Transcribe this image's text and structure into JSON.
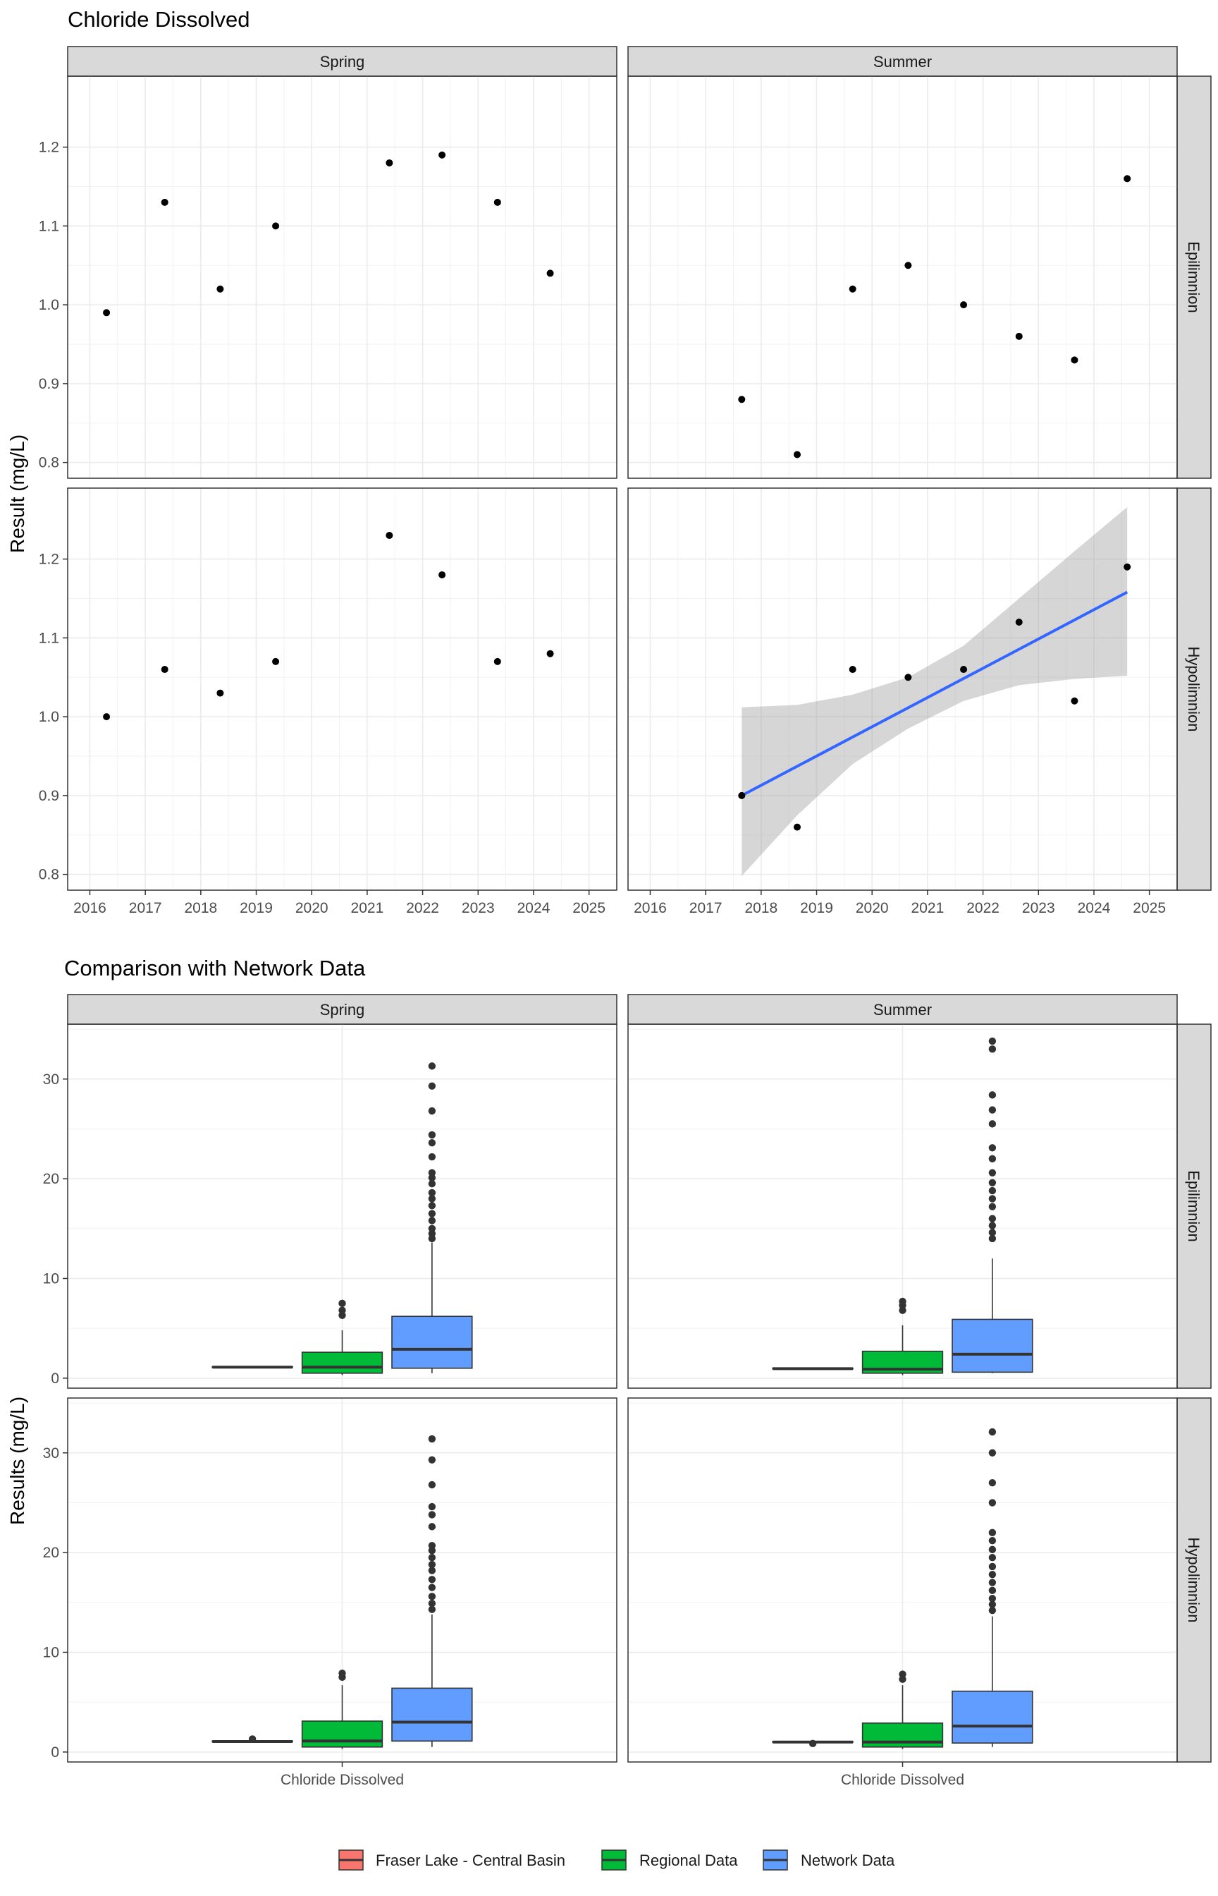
{
  "chart_data": [
    {
      "type": "scatter",
      "title": "Chloride Dissolved",
      "ylabel": "Result (mg/L)",
      "ylim": [
        0.78,
        1.29
      ],
      "xlim": [
        2015.6,
        2025.5
      ],
      "x_ticks": [
        "2016",
        "2017",
        "2018",
        "2019",
        "2020",
        "2021",
        "2022",
        "2023",
        "2024",
        "2025"
      ],
      "y_ticks": [
        "0.8",
        "0.9",
        "1.0",
        "1.1",
        "1.2"
      ],
      "columns": [
        "Spring",
        "Summer"
      ],
      "rows": [
        "Epilimnion",
        "Hypolimnion"
      ],
      "grid": true,
      "panels": [
        {
          "column": "Spring",
          "row": "Epilimnion",
          "points": [
            [
              2016.3,
              0.99
            ],
            [
              2017.35,
              1.13
            ],
            [
              2018.35,
              1.02
            ],
            [
              2019.35,
              1.1
            ],
            [
              2021.4,
              1.18
            ],
            [
              2022.35,
              1.19
            ],
            [
              2023.35,
              1.13
            ],
            [
              2024.3,
              1.04
            ]
          ]
        },
        {
          "column": "Summer",
          "row": "Epilimnion",
          "points": [
            [
              2017.65,
              0.88
            ],
            [
              2018.65,
              0.81
            ],
            [
              2019.65,
              1.02
            ],
            [
              2020.65,
              1.05
            ],
            [
              2021.65,
              1.0
            ],
            [
              2022.65,
              0.96
            ],
            [
              2023.65,
              0.93
            ],
            [
              2024.6,
              1.16
            ]
          ]
        },
        {
          "column": "Spring",
          "row": "Hypolimnion",
          "points": [
            [
              2016.3,
              1.0
            ],
            [
              2017.35,
              1.06
            ],
            [
              2018.35,
              1.03
            ],
            [
              2019.35,
              1.07
            ],
            [
              2021.4,
              1.23
            ],
            [
              2022.35,
              1.18
            ],
            [
              2023.35,
              1.07
            ],
            [
              2024.3,
              1.08
            ]
          ]
        },
        {
          "column": "Summer",
          "row": "Hypolimnion",
          "points": [
            [
              2017.65,
              0.9
            ],
            [
              2018.65,
              0.86
            ],
            [
              2019.65,
              1.06
            ],
            [
              2020.65,
              1.05
            ],
            [
              2021.65,
              1.06
            ],
            [
              2022.65,
              1.12
            ],
            [
              2023.65,
              1.02
            ],
            [
              2024.6,
              1.19
            ]
          ],
          "trend": {
            "color": "#3366ff",
            "x": [
              2017.65,
              2024.6
            ],
            "y": [
              0.9,
              1.158
            ]
          },
          "ribbon": {
            "x": [
              2017.65,
              2018.65,
              2019.65,
              2020.65,
              2021.65,
              2022.65,
              2023.65,
              2024.6
            ],
            "lower": [
              0.798,
              0.875,
              0.94,
              0.985,
              1.02,
              1.04,
              1.048,
              1.052
            ],
            "upper": [
              1.012,
              1.015,
              1.028,
              1.05,
              1.09,
              1.15,
              1.21,
              1.266
            ]
          }
        }
      ]
    },
    {
      "type": "box",
      "title": "Comparison with Network Data",
      "ylabel": "Results (mg/L)",
      "ylim": [
        -1,
        35.5
      ],
      "y_ticks": [
        "0",
        "10",
        "20",
        "30"
      ],
      "categories": [
        "Chloride Dissolved"
      ],
      "columns": [
        "Spring",
        "Summer"
      ],
      "rows": [
        "Epilimnion",
        "Hypolimnion"
      ],
      "grid": true,
      "legend_position": "bottom",
      "legend": [
        {
          "name": "Fraser Lake - Central Basin",
          "color": "#f8766d"
        },
        {
          "name": "Regional Data",
          "color": "#00ba38"
        },
        {
          "name": "Network Data",
          "color": "#619cff"
        }
      ],
      "panels": [
        {
          "column": "Spring",
          "row": "Epilimnion",
          "groups": [
            {
              "name": "Fraser Lake - Central Basin",
              "min": 1.1,
              "q1": 1.1,
              "median": 1.1,
              "q3": 1.15,
              "max": 1.15,
              "outliers": []
            },
            {
              "name": "Regional Data",
              "min": 0.3,
              "q1": 0.5,
              "median": 1.1,
              "q3": 2.6,
              "max": 4.8,
              "outliers": [
                6.3,
                6.8,
                7.5
              ]
            },
            {
              "name": "Network Data",
              "min": 0.5,
              "q1": 1.0,
              "median": 2.9,
              "q3": 6.2,
              "max": 13.6,
              "outliers": [
                14.0,
                14.5,
                15.0,
                15.8,
                16.5,
                17.3,
                18.0,
                18.6,
                19.5,
                20.1,
                20.6,
                22.2,
                23.6,
                24.4,
                26.8,
                29.3,
                31.3
              ]
            }
          ]
        },
        {
          "column": "Summer",
          "row": "Epilimnion",
          "groups": [
            {
              "name": "Fraser Lake - Central Basin",
              "min": 0.9,
              "q1": 0.95,
              "median": 0.95,
              "q3": 1.0,
              "max": 1.0,
              "outliers": []
            },
            {
              "name": "Regional Data",
              "min": 0.3,
              "q1": 0.5,
              "median": 0.9,
              "q3": 2.7,
              "max": 5.3,
              "outliers": [
                6.8,
                7.3,
                7.7
              ]
            },
            {
              "name": "Network Data",
              "min": 0.5,
              "q1": 0.6,
              "median": 2.4,
              "q3": 5.9,
              "max": 12.0,
              "outliers": [
                14.0,
                14.6,
                15.3,
                16.0,
                17.2,
                18.0,
                18.8,
                19.6,
                20.6,
                22.0,
                23.1,
                25.5,
                26.9,
                28.4,
                33.0,
                33.8
              ]
            }
          ]
        },
        {
          "column": "Spring",
          "row": "Hypolimnion",
          "groups": [
            {
              "name": "Fraser Lake - Central Basin",
              "min": 1.0,
              "q1": 1.05,
              "median": 1.05,
              "q3": 1.1,
              "max": 1.1,
              "outliers": [
                1.3
              ]
            },
            {
              "name": "Regional Data",
              "min": 0.3,
              "q1": 0.5,
              "median": 1.1,
              "q3": 3.1,
              "max": 6.7,
              "outliers": [
                7.5,
                7.9
              ]
            },
            {
              "name": "Network Data",
              "min": 0.5,
              "q1": 1.1,
              "median": 3.0,
              "q3": 6.4,
              "max": 13.8,
              "outliers": [
                14.3,
                14.9,
                15.6,
                16.5,
                17.3,
                18.2,
                18.8,
                19.5,
                20.2,
                20.7,
                22.6,
                23.8,
                24.6,
                26.8,
                29.3,
                31.4
              ]
            }
          ]
        },
        {
          "column": "Summer",
          "row": "Hypolimnion",
          "groups": [
            {
              "name": "Fraser Lake - Central Basin",
              "min": 0.9,
              "q1": 1.0,
              "median": 1.0,
              "q3": 1.05,
              "max": 1.05,
              "outliers": [
                0.85
              ]
            },
            {
              "name": "Regional Data",
              "min": 0.3,
              "q1": 0.5,
              "median": 1.0,
              "q3": 2.9,
              "max": 6.7,
              "outliers": [
                7.3,
                7.8
              ]
            },
            {
              "name": "Network Data",
              "min": 0.5,
              "q1": 0.9,
              "median": 2.6,
              "q3": 6.1,
              "max": 13.6,
              "outliers": [
                14.2,
                14.8,
                15.4,
                16.2,
                17.0,
                17.8,
                18.6,
                19.5,
                20.3,
                21.2,
                22.0,
                25.0,
                27.0,
                30.0,
                32.1
              ]
            }
          ]
        }
      ]
    }
  ]
}
